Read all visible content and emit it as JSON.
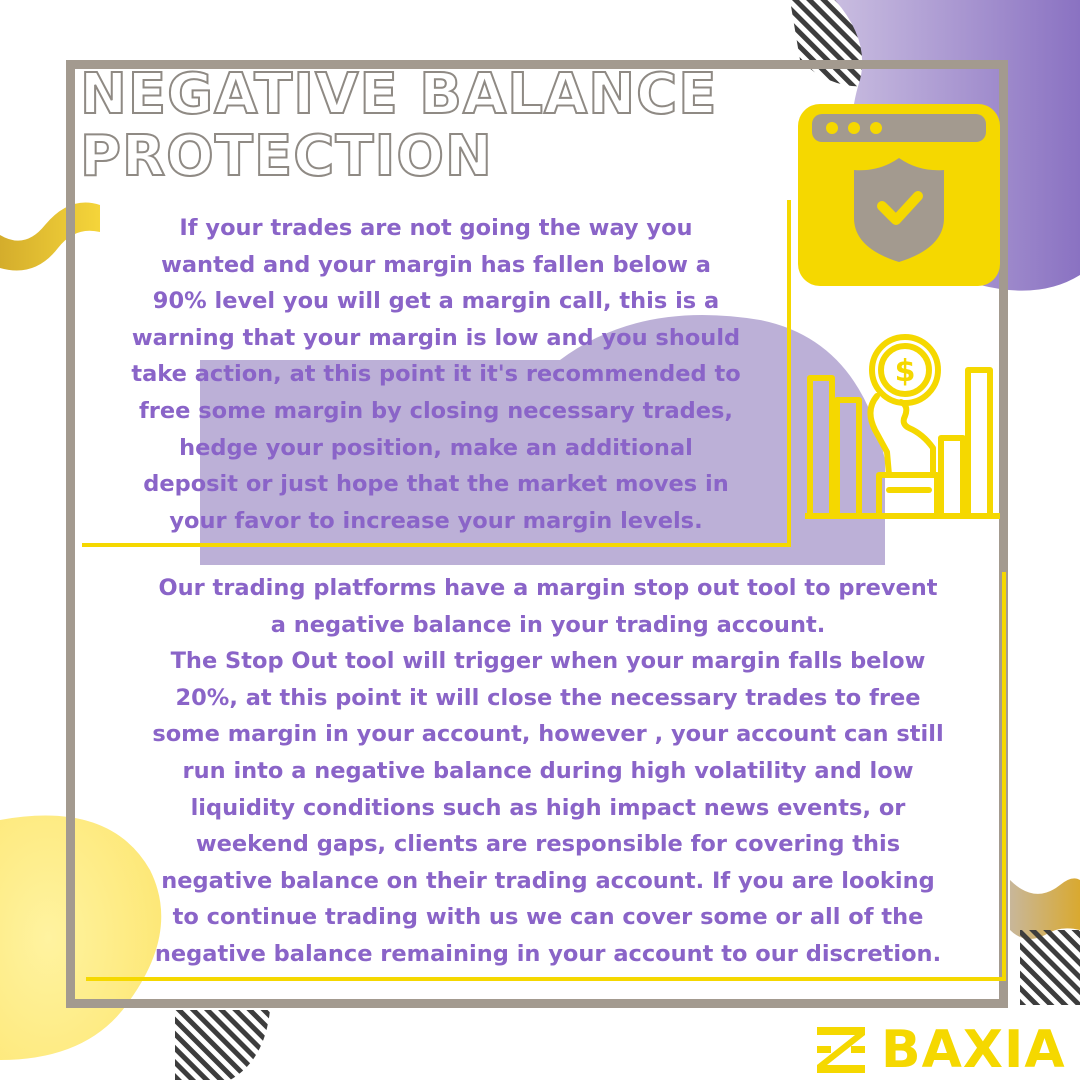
{
  "title": {
    "line1": "NEGATIVE BALANCE",
    "line2": "PROTECTION"
  },
  "paragraph1": {
    "lines": [
      "If your trades are not going the way you",
      "wanted and your margin has fallen below a",
      "90% level you will get a margin call, this is a",
      "warning that your margin is low and you should",
      "take action, at this point it it's recommended to",
      "free some margin by closing necessary trades,",
      "hedge your position, make an additional",
      "deposit or just hope that the market moves in",
      "your favor to increase your margin levels."
    ]
  },
  "paragraph2": {
    "lines": [
      "Our trading platforms have a margin stop out tool to prevent",
      "a negative balance in your trading account.",
      "The Stop Out tool will trigger when your margin falls below",
      "20%, at this point it will close the necessary trades to free",
      "some margin in your account, however , your account can still",
      "run into a negative balance during high volatility and low",
      "liquidity conditions  such as high impact news events, or",
      "weekend gaps, clients are responsible for covering this",
      "negative balance on their trading account. If you are looking",
      "to continue trading with us we can cover some or all of the",
      "negative balance remaining in your account to our discretion."
    ]
  },
  "logo": {
    "word": "BAXIA"
  },
  "icons": {
    "browser_shield": "browser-shield-check-icon",
    "money_chart": "hand-coin-bar-chart-icon",
    "logo_mark": "baxia-logo-mark-icon"
  },
  "colors": {
    "accent_yellow": "#f5d800",
    "text_purple": "#8a64c8",
    "frame_gray": "#a39a8f",
    "blob_purple": "#8e76c0"
  }
}
